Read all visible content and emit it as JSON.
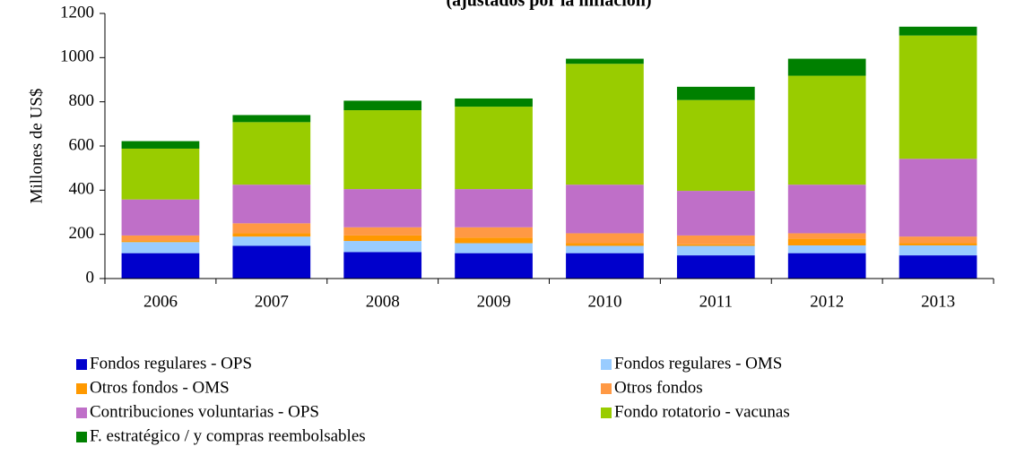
{
  "chart_data": {
    "type": "stacked_bar",
    "title": "(ajustados por la inflación)",
    "y_label": "Millones de US$",
    "categories": [
      "2006",
      "2007",
      "2008",
      "2009",
      "2010",
      "2011",
      "2012",
      "2013"
    ],
    "series": [
      {
        "name": "Fondos regulares - OPS",
        "color": "#0000cc",
        "values": [
          115,
          148,
          120,
          115,
          115,
          105,
          115,
          105
        ]
      },
      {
        "name": "Fondos regulares - OMS",
        "color": "#99ccff",
        "values": [
          50,
          42,
          50,
          45,
          33,
          43,
          35,
          45
        ]
      },
      {
        "name": "Otros fondos - OMS",
        "color": "#ff9900",
        "values": [
          5,
          15,
          25,
          25,
          12,
          7,
          30,
          10
        ]
      },
      {
        "name": "Otros fondos",
        "color": "#ff9944",
        "values": [
          25,
          45,
          37,
          47,
          45,
          40,
          25,
          30
        ]
      },
      {
        "name": "Contribuciones voluntarias - OPS",
        "color": "#bf6fc8",
        "values": [
          163,
          175,
          173,
          173,
          220,
          202,
          220,
          352
        ]
      },
      {
        "name": "Fondo rotatorio - vacunas",
        "color": "#99cc00",
        "values": [
          230,
          283,
          357,
          373,
          547,
          411,
          493,
          558
        ]
      },
      {
        "name": "F. estratégico / y compras reembolsables",
        "color": "#008000",
        "values": [
          34,
          32,
          43,
          37,
          23,
          60,
          77,
          40
        ]
      }
    ],
    "ylim": [
      0,
      1200
    ],
    "yticks": [
      0,
      200,
      400,
      600,
      800,
      1000,
      1200
    ]
  }
}
